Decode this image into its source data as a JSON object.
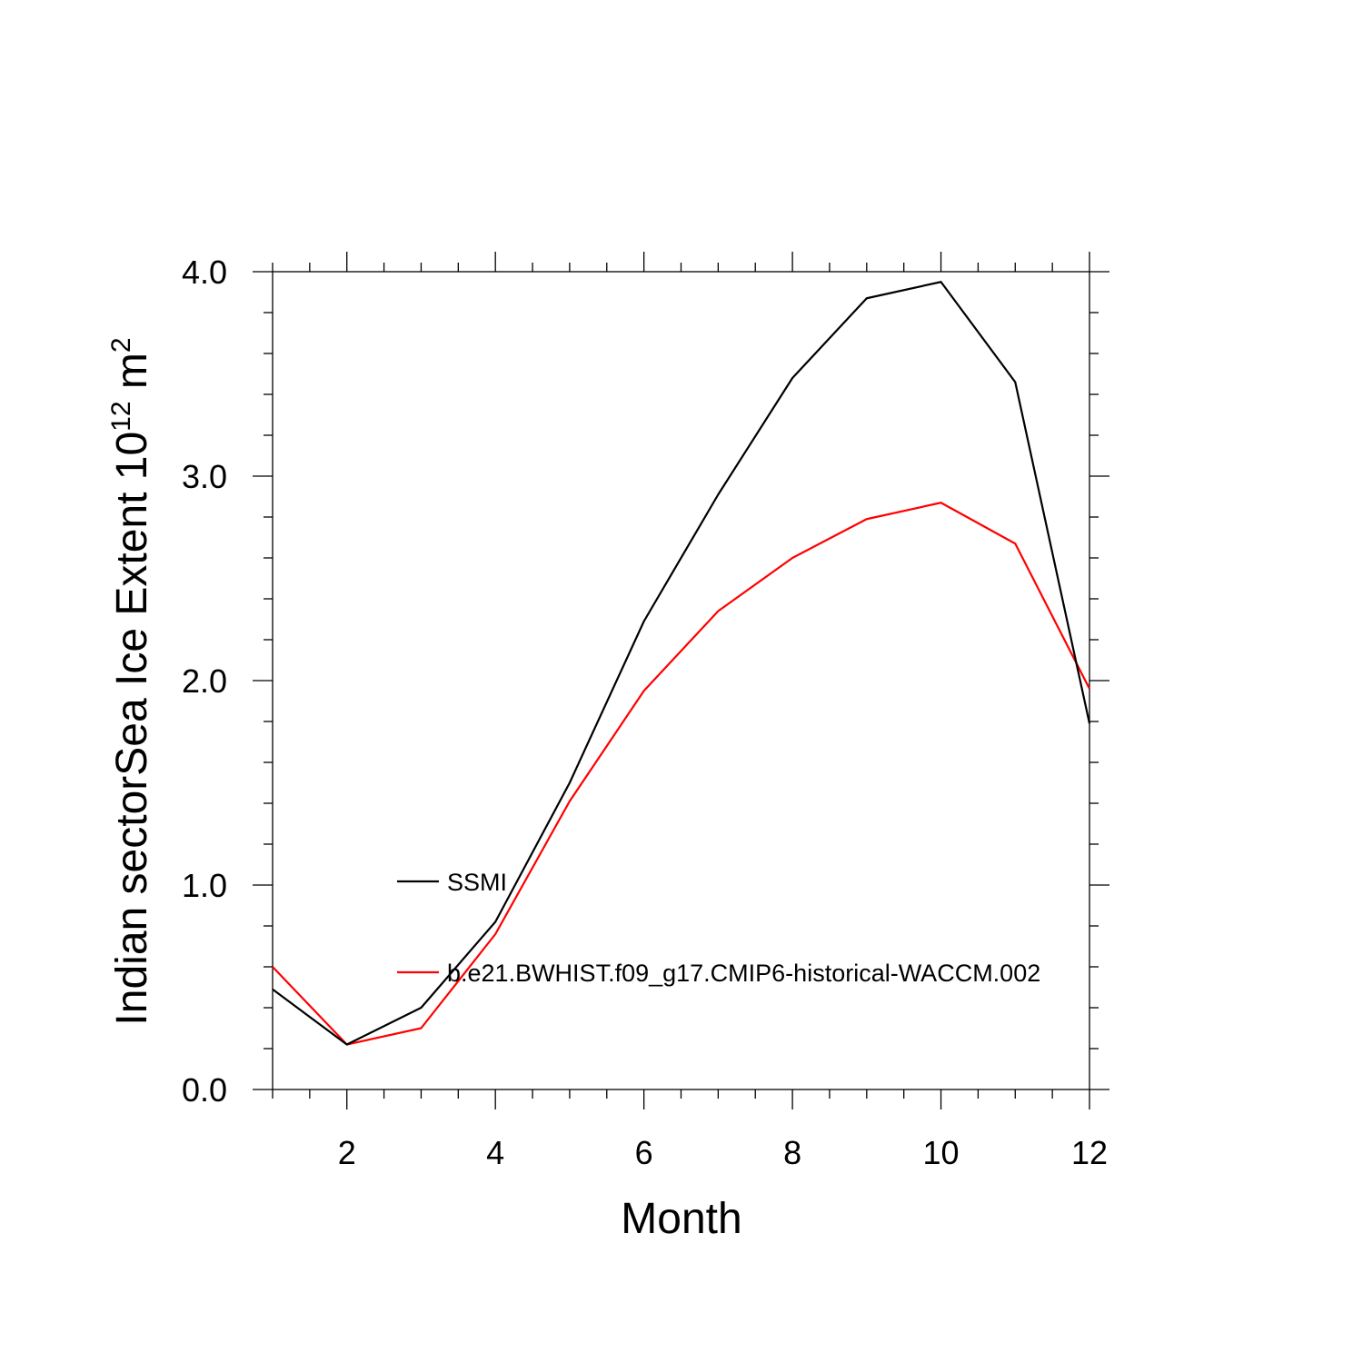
{
  "chart_data": {
    "type": "line",
    "x": [
      1,
      2,
      3,
      4,
      5,
      6,
      7,
      8,
      9,
      10,
      11,
      12
    ],
    "series": [
      {
        "name": "SSMI",
        "color": "#000000",
        "values": [
          0.49,
          0.22,
          0.4,
          0.82,
          1.5,
          2.29,
          2.91,
          3.48,
          3.87,
          3.95,
          3.46,
          1.79
        ]
      },
      {
        "name": "b.e21.BWHIST.f09_g17.CMIP6-historical-WACCM.002",
        "color": "#ff0000",
        "values": [
          0.6,
          0.22,
          0.3,
          0.76,
          1.41,
          1.95,
          2.34,
          2.6,
          2.79,
          2.87,
          2.67,
          1.96
        ]
      }
    ],
    "xlabel": "Month",
    "ylabel": {
      "text": "Indian sectorSea Ice Extent 10",
      "exp1": "12",
      "mid": " m",
      "exp2": "2"
    },
    "xlim": [
      1,
      12
    ],
    "ylim": [
      0,
      4
    ],
    "xticks": [
      "2",
      "4",
      "6",
      "8",
      "10",
      "12"
    ],
    "yticks": [
      "0.0",
      "1.0",
      "2.0",
      "3.0",
      "4.0"
    ],
    "grid": false,
    "legend_position": "center-left"
  }
}
